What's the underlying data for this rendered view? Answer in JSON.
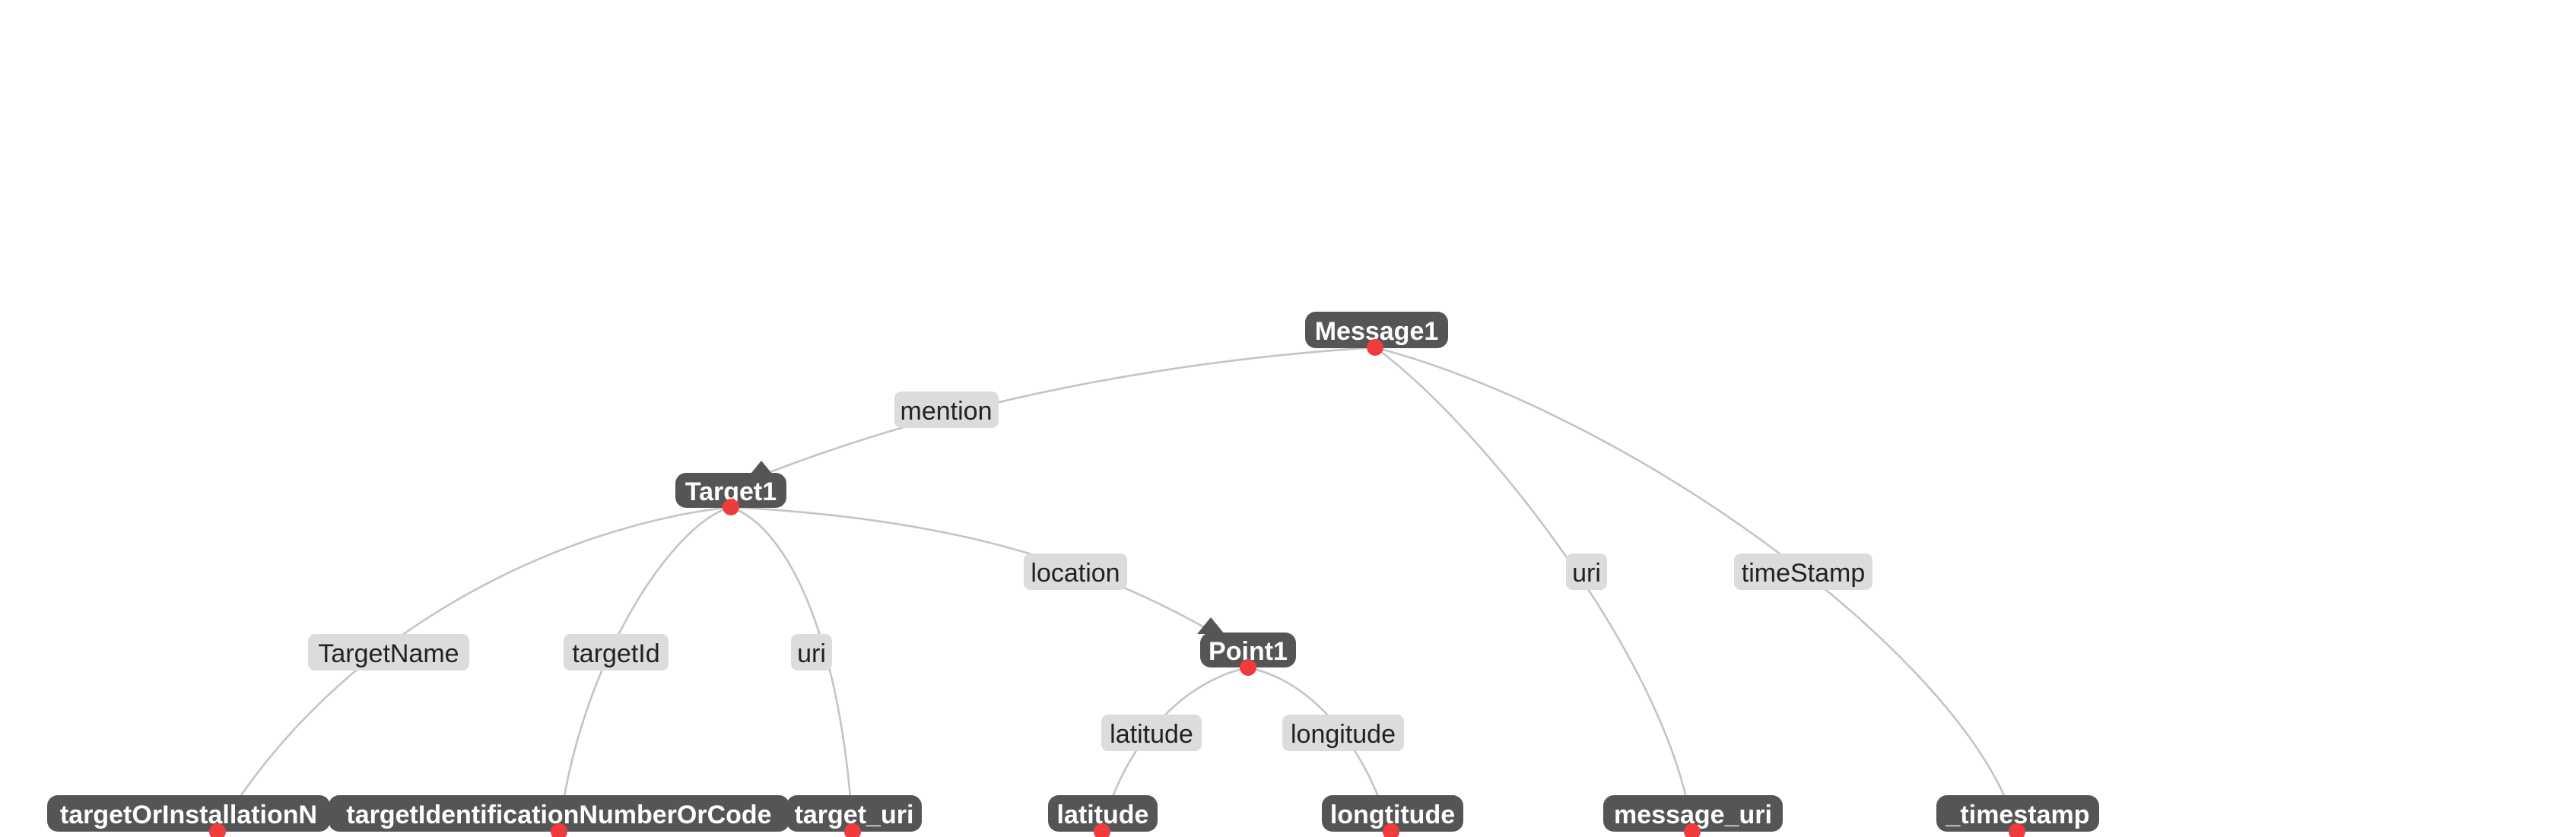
{
  "colors": {
    "node_fill": "#555555",
    "node_text": "#ffffff",
    "edge_label_fill": "#dcdcdc",
    "edge_label_text": "#222222",
    "edge_stroke": "#c4c4c4",
    "port_dot": "#ee3b3b",
    "background": "#ffffff"
  },
  "nodes": [
    {
      "id": "message1",
      "label": "Message1",
      "kind": "class",
      "collapse_arrow": false
    },
    {
      "id": "target1",
      "label": "Target1",
      "kind": "class",
      "collapse_arrow": true
    },
    {
      "id": "point1",
      "label": "Point1",
      "kind": "class",
      "collapse_arrow": true
    },
    {
      "id": "target_name_col",
      "label": "targetOrInstallationN",
      "kind": "column"
    },
    {
      "id": "target_id_col",
      "label": "targetIdentificationNumberOrCode",
      "kind": "column"
    },
    {
      "id": "target_uri_col",
      "label": "target_uri",
      "kind": "column"
    },
    {
      "id": "latitude_col",
      "label": "latitude",
      "kind": "column"
    },
    {
      "id": "longitude_col",
      "label": "longtitude",
      "kind": "column"
    },
    {
      "id": "message_uri_col",
      "label": "message_uri",
      "kind": "column"
    },
    {
      "id": "timestamp_col",
      "label": "_timestamp",
      "kind": "column"
    }
  ],
  "edges": [
    {
      "id": "mention",
      "label": "mention",
      "from": "message1",
      "to": "target1"
    },
    {
      "id": "message_uri_edge",
      "label": "uri",
      "from": "message1",
      "to": "message_uri_col"
    },
    {
      "id": "timestamp_edge",
      "label": "timeStamp",
      "from": "message1",
      "to": "timestamp_col"
    },
    {
      "id": "target_name_edge",
      "label": "TargetName",
      "from": "target1",
      "to": "target_name_col"
    },
    {
      "id": "target_id_edge",
      "label": "targetId",
      "from": "target1",
      "to": "target_id_col"
    },
    {
      "id": "target_uri_edge",
      "label": "uri",
      "from": "target1",
      "to": "target_uri_col"
    },
    {
      "id": "location_edge",
      "label": "location",
      "from": "target1",
      "to": "point1"
    },
    {
      "id": "latitude_edge",
      "label": "latitude",
      "from": "point1",
      "to": "latitude_col"
    },
    {
      "id": "longitude_edge",
      "label": "longitude",
      "from": "point1",
      "to": "longitude_col"
    }
  ]
}
